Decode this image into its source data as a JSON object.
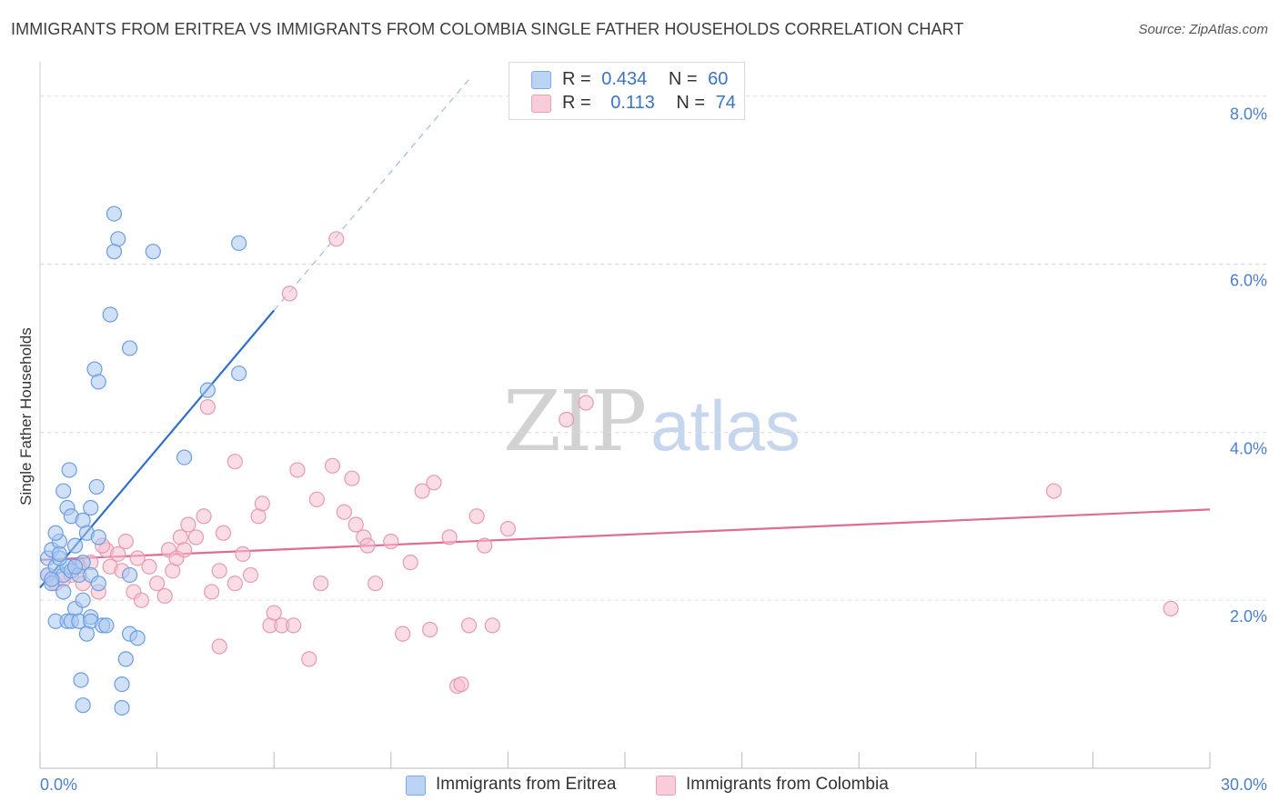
{
  "title": "IMMIGRANTS FROM ERITREA VS IMMIGRANTS FROM COLOMBIA SINGLE FATHER HOUSEHOLDS CORRELATION CHART",
  "source": "Source: ZipAtlas.com",
  "watermark": {
    "zip": "ZIP",
    "atlas": "atlas"
  },
  "legend": {
    "eritrea": {
      "r_label": "R =",
      "r_value": "0.434",
      "n_label": "N =",
      "n_value": "60"
    },
    "colombia": {
      "r_label": "R =",
      "r_value": "0.113",
      "n_label": "N =",
      "n_value": "74"
    }
  },
  "bottom_legend": {
    "eritrea": "Immigrants from Eritrea",
    "colombia": "Immigrants from Colombia"
  },
  "colors": {
    "eritrea_fill": "#a9c8f0",
    "eritrea_stroke": "#6b9ee0",
    "eritrea_line": "#2f6fc9",
    "colombia_fill": "#f6bfd0",
    "colombia_stroke": "#e79ab2",
    "colombia_line": "#e06b95",
    "tick_text": "#4a7fd0",
    "grid": "#dddddd"
  },
  "chart_data": {
    "type": "scatter",
    "title": "IMMIGRANTS FROM ERITREA VS IMMIGRANTS FROM COLOMBIA SINGLE FATHER HOUSEHOLDS CORRELATION CHART",
    "xlabel": "",
    "ylabel": "Single Father Households",
    "xlim": [
      0,
      30
    ],
    "ylim": [
      0,
      8.3
    ],
    "x_tick_labels": [
      "0.0%",
      "30.0%"
    ],
    "y_ticks": [
      2,
      4,
      6,
      8
    ],
    "y_tick_labels": [
      "2.0%",
      "4.0%",
      "6.0%",
      "8.0%"
    ],
    "grid": "horizontal dashed",
    "series": [
      {
        "name": "Immigrants from Eritrea",
        "points": [
          [
            0.2,
            2.5
          ],
          [
            0.3,
            2.6
          ],
          [
            0.2,
            2.3
          ],
          [
            0.4,
            2.4
          ],
          [
            0.3,
            2.2
          ],
          [
            0.5,
            2.7
          ],
          [
            0.6,
            2.3
          ],
          [
            0.4,
            2.8
          ],
          [
            0.7,
            2.4
          ],
          [
            0.8,
            2.35
          ],
          [
            0.5,
            2.5
          ],
          [
            0.9,
            2.65
          ],
          [
            1.0,
            2.3
          ],
          [
            1.1,
            2.45
          ],
          [
            0.6,
            3.3
          ],
          [
            0.7,
            3.1
          ],
          [
            0.8,
            3.0
          ],
          [
            0.75,
            3.55
          ],
          [
            1.1,
            2.95
          ],
          [
            1.3,
            3.1
          ],
          [
            1.2,
            2.8
          ],
          [
            1.45,
            3.35
          ],
          [
            1.5,
            2.75
          ],
          [
            1.3,
            2.3
          ],
          [
            0.6,
            2.1
          ],
          [
            0.9,
            1.9
          ],
          [
            1.1,
            2.0
          ],
          [
            0.4,
            1.75
          ],
          [
            0.7,
            1.75
          ],
          [
            0.8,
            1.75
          ],
          [
            1.0,
            1.75
          ],
          [
            1.3,
            1.8
          ],
          [
            1.3,
            1.75
          ],
          [
            1.6,
            1.7
          ],
          [
            1.7,
            1.7
          ],
          [
            1.2,
            1.6
          ],
          [
            2.3,
            1.6
          ],
          [
            2.5,
            1.55
          ],
          [
            2.2,
            1.3
          ],
          [
            1.05,
            1.05
          ],
          [
            2.1,
            1.0
          ],
          [
            1.1,
            0.75
          ],
          [
            2.1,
            0.72
          ],
          [
            1.9,
            6.6
          ],
          [
            2.0,
            6.3
          ],
          [
            1.9,
            6.15
          ],
          [
            2.9,
            6.15
          ],
          [
            5.1,
            6.25
          ],
          [
            1.8,
            5.4
          ],
          [
            2.3,
            5.0
          ],
          [
            1.4,
            4.75
          ],
          [
            1.5,
            4.6
          ],
          [
            5.1,
            4.7
          ],
          [
            4.3,
            4.5
          ],
          [
            3.7,
            3.7
          ],
          [
            0.3,
            2.25
          ],
          [
            0.5,
            2.55
          ],
          [
            0.9,
            2.4
          ],
          [
            1.5,
            2.2
          ],
          [
            2.3,
            2.3
          ]
        ],
        "trend": {
          "from": [
            0.0,
            2.15
          ],
          "to": [
            6.0,
            5.45
          ],
          "dashed_to": [
            11.0,
            8.2
          ]
        }
      },
      {
        "name": "Immigrants from Colombia",
        "points": [
          [
            0.2,
            2.3
          ],
          [
            0.4,
            2.2
          ],
          [
            0.6,
            2.25
          ],
          [
            0.8,
            2.3
          ],
          [
            1.0,
            2.4
          ],
          [
            1.1,
            2.2
          ],
          [
            1.3,
            2.45
          ],
          [
            1.5,
            2.1
          ],
          [
            1.7,
            2.6
          ],
          [
            1.8,
            2.4
          ],
          [
            2.0,
            2.55
          ],
          [
            2.1,
            2.35
          ],
          [
            2.2,
            2.7
          ],
          [
            2.4,
            2.1
          ],
          [
            2.5,
            2.5
          ],
          [
            2.6,
            2.0
          ],
          [
            2.8,
            2.4
          ],
          [
            3.0,
            2.2
          ],
          [
            3.2,
            2.05
          ],
          [
            3.3,
            2.6
          ],
          [
            3.4,
            2.35
          ],
          [
            3.5,
            2.5
          ],
          [
            3.6,
            2.75
          ],
          [
            3.7,
            2.6
          ],
          [
            3.8,
            2.9
          ],
          [
            4.0,
            2.75
          ],
          [
            4.2,
            3.0
          ],
          [
            4.4,
            2.1
          ],
          [
            4.6,
            2.35
          ],
          [
            4.7,
            2.8
          ],
          [
            5.0,
            2.2
          ],
          [
            5.2,
            2.55
          ],
          [
            5.4,
            2.3
          ],
          [
            5.6,
            3.0
          ],
          [
            5.7,
            3.15
          ],
          [
            5.9,
            1.7
          ],
          [
            6.0,
            1.85
          ],
          [
            6.2,
            1.7
          ],
          [
            6.5,
            1.7
          ],
          [
            6.6,
            3.55
          ],
          [
            6.9,
            1.3
          ],
          [
            7.2,
            2.2
          ],
          [
            7.1,
            3.2
          ],
          [
            7.5,
            3.6
          ],
          [
            7.8,
            3.05
          ],
          [
            8.0,
            3.45
          ],
          [
            8.1,
            2.9
          ],
          [
            8.3,
            2.75
          ],
          [
            8.4,
            2.65
          ],
          [
            8.6,
            2.2
          ],
          [
            9.0,
            2.7
          ],
          [
            9.3,
            1.6
          ],
          [
            9.5,
            2.45
          ],
          [
            9.8,
            3.3
          ],
          [
            10.0,
            1.65
          ],
          [
            10.1,
            3.4
          ],
          [
            10.5,
            2.75
          ],
          [
            10.7,
            0.98
          ],
          [
            10.8,
            1.0
          ],
          [
            11.0,
            1.7
          ],
          [
            11.2,
            3.0
          ],
          [
            11.4,
            2.65
          ],
          [
            11.6,
            1.7
          ],
          [
            12.0,
            2.85
          ],
          [
            13.5,
            4.15
          ],
          [
            14.0,
            4.35
          ],
          [
            7.6,
            6.3
          ],
          [
            6.4,
            5.65
          ],
          [
            4.3,
            4.3
          ],
          [
            5.0,
            3.65
          ],
          [
            29.0,
            1.9
          ],
          [
            26.0,
            3.3
          ],
          [
            4.6,
            1.45
          ],
          [
            1.6,
            2.65
          ]
        ],
        "trend": {
          "from": [
            0.0,
            2.48
          ],
          "to": [
            30.0,
            3.08
          ]
        }
      }
    ]
  }
}
